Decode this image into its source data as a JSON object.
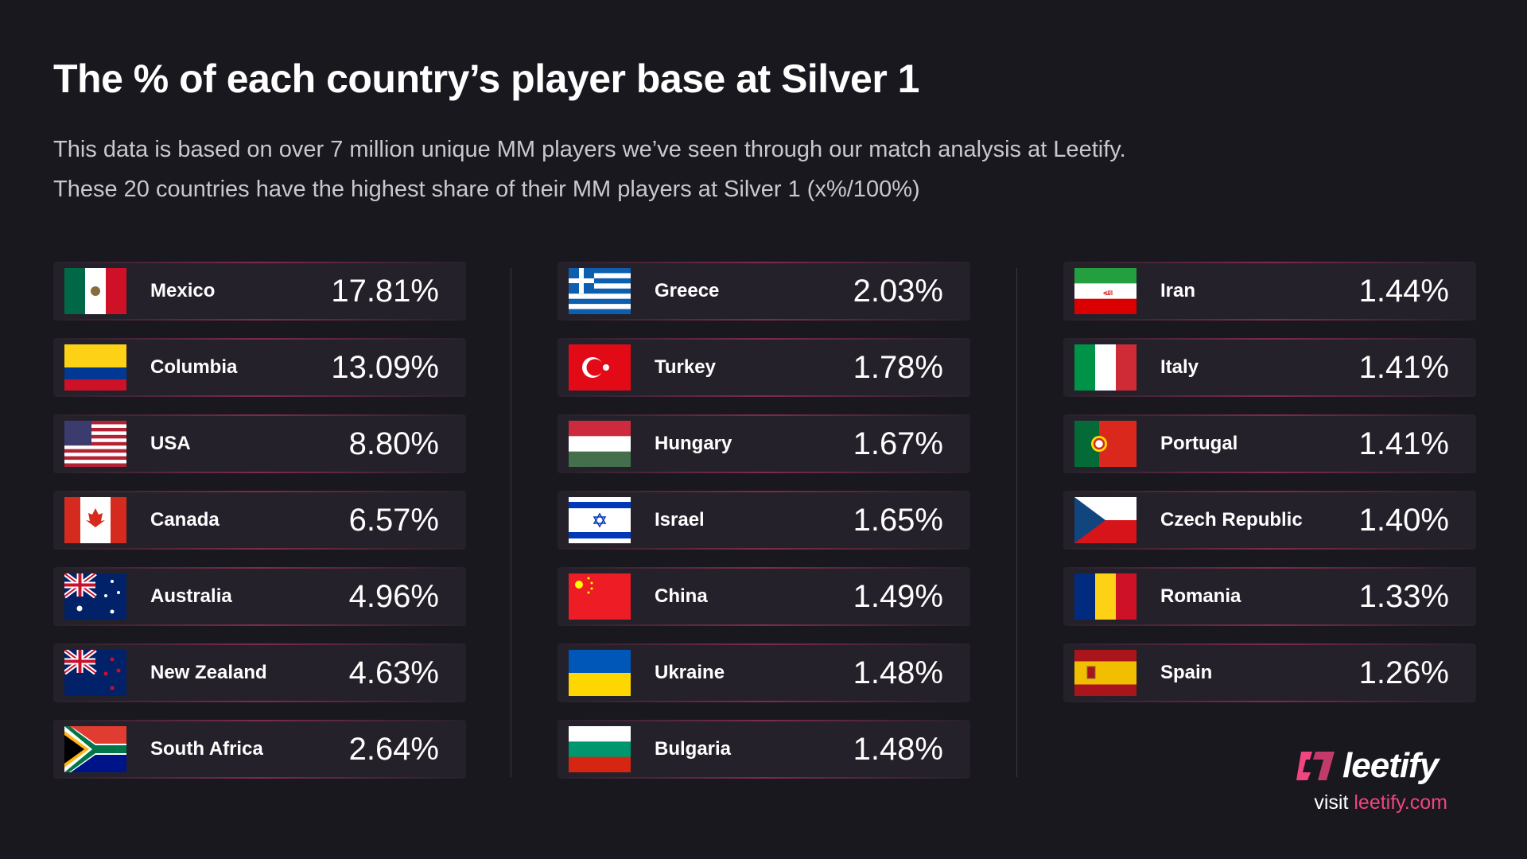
{
  "title": "The % of each country’s player base at Silver 1",
  "subtitle": [
    "This data is based on over 7 million unique MM players we’ve seen through our match analysis at Leetify.",
    "These 20 countries have the highest share of their MM players at Silver 1 (x%/100%)"
  ],
  "columns": [
    [
      {
        "name": "Mexico",
        "value": "17.81%",
        "flag": "mexico-flag"
      },
      {
        "name": "Columbia",
        "value": "13.09%",
        "flag": "colombia-flag"
      },
      {
        "name": "USA",
        "value": "8.80%",
        "flag": "usa-flag"
      },
      {
        "name": "Canada",
        "value": "6.57%",
        "flag": "canada-flag"
      },
      {
        "name": "Australia",
        "value": "4.96%",
        "flag": "australia-flag"
      },
      {
        "name": "New Zealand",
        "value": "4.63%",
        "flag": "newzealand-flag"
      },
      {
        "name": "South Africa",
        "value": "2.64%",
        "flag": "southafrica-flag"
      }
    ],
    [
      {
        "name": "Greece",
        "value": "2.03%",
        "flag": "greece-flag"
      },
      {
        "name": "Turkey",
        "value": "1.78%",
        "flag": "turkey-flag"
      },
      {
        "name": "Hungary",
        "value": "1.67%",
        "flag": "hungary-flag"
      },
      {
        "name": "Israel",
        "value": "1.65%",
        "flag": "israel-flag"
      },
      {
        "name": "China",
        "value": "1.49%",
        "flag": "china-flag"
      },
      {
        "name": "Ukraine",
        "value": "1.48%",
        "flag": "ukraine-flag"
      },
      {
        "name": "Bulgaria",
        "value": "1.48%",
        "flag": "bulgaria-flag"
      }
    ],
    [
      {
        "name": "Iran",
        "value": "1.44%",
        "flag": "iran-flag"
      },
      {
        "name": "Italy",
        "value": "1.41%",
        "flag": "italy-flag"
      },
      {
        "name": "Portugal",
        "value": "1.41%",
        "flag": "portugal-flag"
      },
      {
        "name": "Czech Republic",
        "value": "1.40%",
        "flag": "czech-flag"
      },
      {
        "name": "Romania",
        "value": "1.33%",
        "flag": "romania-flag"
      },
      {
        "name": "Spain",
        "value": "1.26%",
        "flag": "spain-flag"
      }
    ]
  ],
  "logo": {
    "word": "leetify"
  },
  "footer": {
    "visit": "visit ",
    "link": "leetify.com"
  },
  "colors": {
    "background": "#19181e",
    "card": "#25212b",
    "accent": "#f0457f"
  }
}
